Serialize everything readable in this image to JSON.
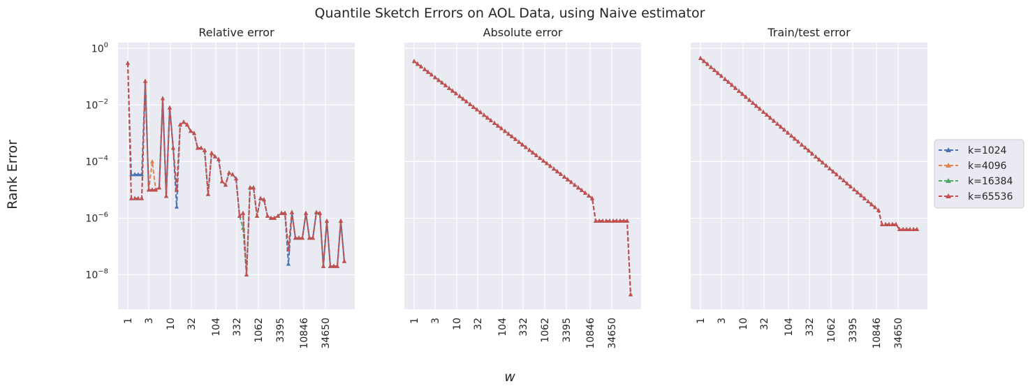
{
  "figure": {
    "suptitle": "Quantile Sketch Errors on AOL Data, using Naive estimator",
    "xlabel": "w",
    "ylabel": "Rank Error"
  },
  "chart_data": [
    {
      "type": "line",
      "title": "Relative error",
      "yscale": "log",
      "ylim": [
        6e-10,
        1.6
      ],
      "xtick_labels": [
        "1",
        "3",
        "10",
        "32",
        "104",
        "332",
        "1062",
        "3395",
        "10846",
        "34650"
      ],
      "ytick_labels": [
        "10^0",
        "10^-2",
        "10^-4",
        "10^-6",
        "10^-8"
      ],
      "grid": true,
      "series": [
        {
          "name": "k=1024",
          "color": "#4c72b0",
          "marker": "*"
        },
        {
          "name": "k=4096",
          "color": "#dd8452",
          "marker": "*"
        },
        {
          "name": "k=16384",
          "color": "#55a868",
          "marker": "*"
        },
        {
          "name": "k=65536",
          "color": "#c44e52",
          "marker": "^"
        }
      ]
    },
    {
      "type": "line",
      "title": "Absolute error",
      "yscale": "log",
      "sharey": true,
      "xtick_labels": [
        "1",
        "3",
        "10",
        "32",
        "104",
        "332",
        "1062",
        "3395",
        "10846",
        "34650"
      ],
      "grid": true
    },
    {
      "type": "line",
      "title": "Train/test error",
      "yscale": "log",
      "sharey": true,
      "xtick_labels": [
        "1",
        "3",
        "10",
        "32",
        "104",
        "332",
        "1062",
        "3395",
        "10846",
        "34650"
      ],
      "grid": true
    }
  ],
  "legend": {
    "placement": "right",
    "entries": [
      {
        "label": "k=1024",
        "color": "#4c72b0",
        "marker": "*"
      },
      {
        "label": "k=4096",
        "color": "#dd8452",
        "marker": "*"
      },
      {
        "label": "k=16384",
        "color": "#55a868",
        "marker": "*"
      },
      {
        "label": "k=65536",
        "color": "#c44e52",
        "marker": "^"
      }
    ]
  }
}
